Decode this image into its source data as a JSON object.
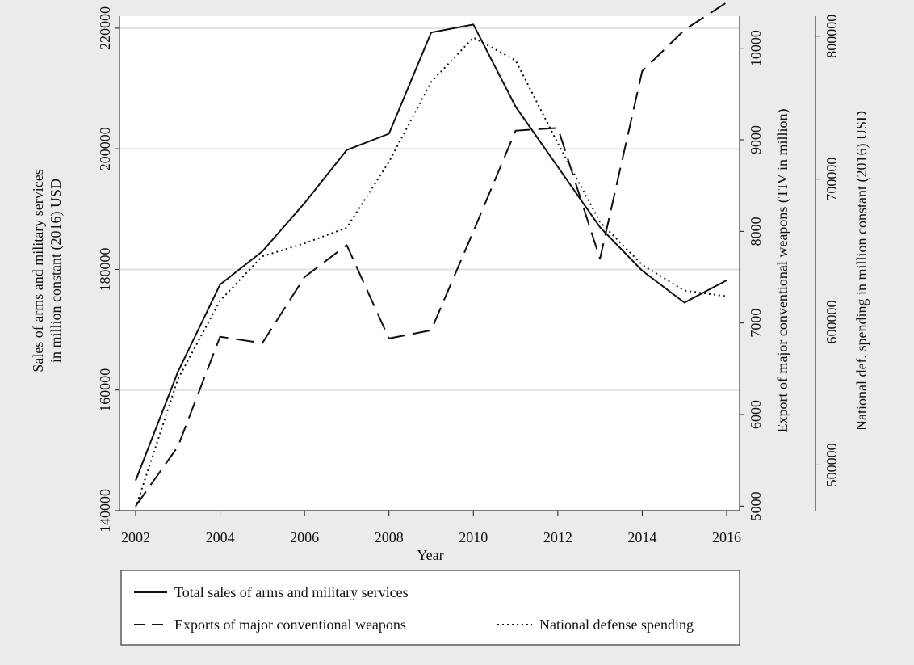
{
  "chart_data": {
    "type": "line",
    "xlabel": "Year",
    "x": [
      2002,
      2003,
      2004,
      2005,
      2006,
      2007,
      2008,
      2009,
      2010,
      2011,
      2012,
      2013,
      2014,
      2015,
      2016
    ],
    "x_ticks": [
      "2002",
      "2004",
      "2006",
      "2008",
      "2010",
      "2012",
      "2014",
      "2016"
    ],
    "axes": [
      {
        "id": "left",
        "label_lines": [
          "Sales of arms and military services",
          "in million constant (2016) USD"
        ],
        "range": [
          140000,
          222000
        ],
        "ticks": [
          "140000",
          "160000",
          "180000",
          "200000",
          "220000"
        ]
      },
      {
        "id": "right1",
        "label": "Export of major conventional weapons (TIV in million)",
        "range": [
          4950,
          10350
        ],
        "ticks": [
          "5000",
          "6000",
          "7000",
          "8000",
          "9000",
          "10000"
        ]
      },
      {
        "id": "right2",
        "label": "National def. spending in million constant (2016) USD",
        "range": [
          468000,
          814000
        ],
        "ticks": [
          "500000",
          "600000",
          "700000",
          "800000"
        ]
      }
    ],
    "series": [
      {
        "name": "Total sales of arms and military services",
        "axis": "left",
        "style": "solid",
        "values": [
          145000,
          163000,
          177500,
          183000,
          191000,
          199800,
          202500,
          219300,
          220600,
          207000,
          197000,
          187000,
          179800,
          174500,
          178200
        ]
      },
      {
        "name": "Exports of major conventional weapons",
        "axis": "right1",
        "style": "dashed",
        "values": [
          5000,
          5650,
          6850,
          6780,
          7500,
          7850,
          6830,
          6920,
          8000,
          9100,
          9130,
          7700,
          9750,
          10200,
          10500
        ]
      },
      {
        "name": "National defense spending",
        "axis": "right2",
        "style": "dotted",
        "values": [
          470000,
          560000,
          615000,
          646000,
          655000,
          666000,
          712000,
          768000,
          799000,
          783000,
          725000,
          670000,
          640000,
          622000,
          618000
        ]
      }
    ],
    "legend": {
      "placement": "bottom",
      "entries": [
        "Total sales of arms and military services",
        "Exports of major conventional weapons",
        "National defense spending"
      ]
    },
    "grid": true,
    "background": "#ebebeb",
    "plot_background": "#ffffff",
    "line_color": "#111111"
  }
}
